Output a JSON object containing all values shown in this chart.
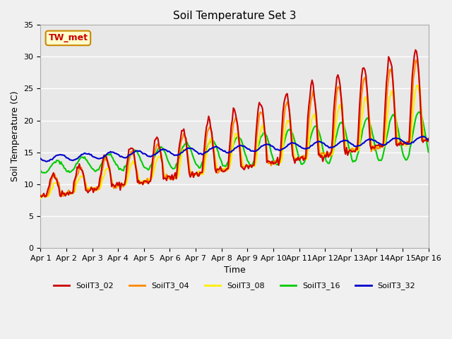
{
  "title": "Soil Temperature Set 3",
  "xlabel": "Time",
  "ylabel": "Soil Temperature (C)",
  "ylim": [
    0,
    35
  ],
  "xlim_days": [
    0,
    15
  ],
  "annotation": "TW_met",
  "series_colors": {
    "SoilT3_02": "#cc0000",
    "SoilT3_04": "#ff8800",
    "SoilT3_08": "#ffee00",
    "SoilT3_16": "#00cc00",
    "SoilT3_32": "#0000cc"
  },
  "xtick_labels": [
    "Apr 1",
    "Apr 2",
    "Apr 3",
    "Apr 4",
    "Apr 5",
    "Apr 6",
    "Apr 7",
    "Apr 8",
    "Apr 9",
    "Apr 10",
    "Apr 11",
    "Apr 12",
    "Apr 13",
    "Apr 14",
    "Apr 15",
    "Apr 16"
  ],
  "ytick_values": [
    0,
    5,
    10,
    15,
    20,
    25,
    30,
    35
  ],
  "bg_color": "#e8e8e8",
  "grid_color": "#ffffff",
  "linewidth": 1.5
}
